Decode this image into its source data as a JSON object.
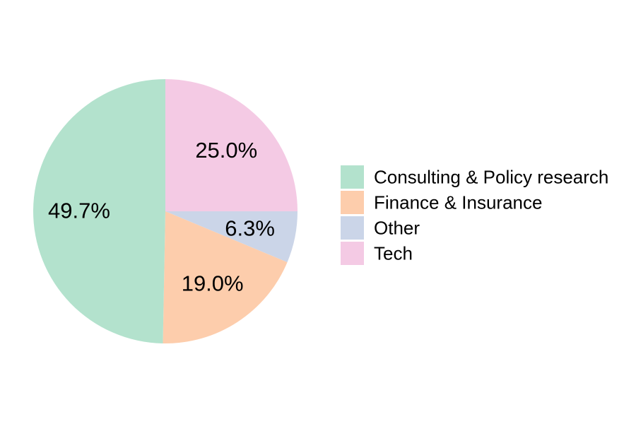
{
  "chart_data": {
    "type": "pie",
    "slices": [
      {
        "label": "Tech",
        "value": 25.0,
        "display": "25.0%",
        "color": "#F4CAE4"
      },
      {
        "label": "Other",
        "value": 6.3,
        "display": "6.3%",
        "color": "#CBD5E8"
      },
      {
        "label": "Finance & Insurance",
        "value": 19.0,
        "display": "19.0%",
        "color": "#FDCDAC"
      },
      {
        "label": "Consulting & Policy research",
        "value": 49.7,
        "display": "49.7%",
        "color": "#B3E2CD"
      }
    ],
    "start_angle": "12 o'clock",
    "direction": "clockwise",
    "legend": {
      "placement": "right",
      "entries": [
        {
          "label": "Consulting & Policy research",
          "color": "#B3E2CD"
        },
        {
          "label": "Finance & Insurance",
          "color": "#FDCDAC"
        },
        {
          "label": "Other",
          "color": "#CBD5E8"
        },
        {
          "label": "Tech",
          "color": "#F4CAE4"
        }
      ]
    }
  }
}
